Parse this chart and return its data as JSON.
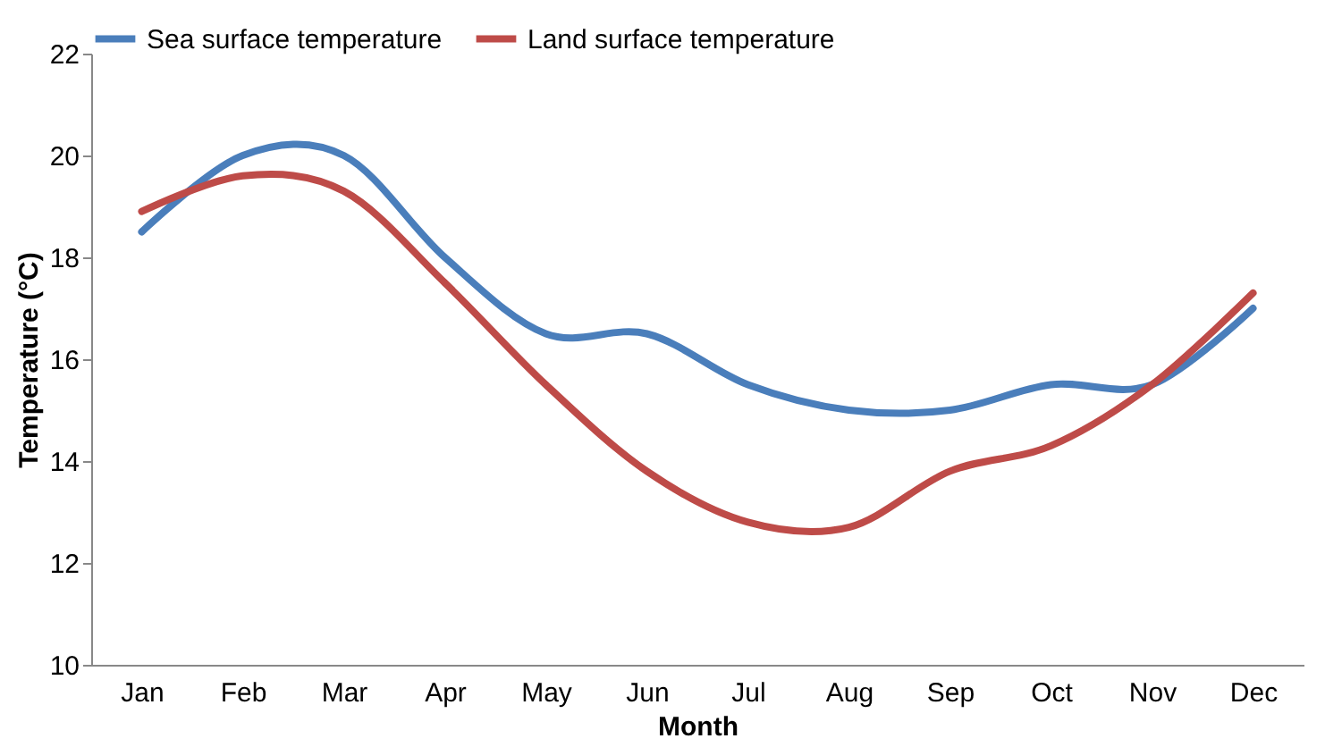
{
  "chart_data": {
    "type": "line",
    "xlabel": "Month",
    "ylabel": "Temperature (°C)",
    "categories": [
      "Jan",
      "Feb",
      "Mar",
      "Apr",
      "May",
      "Jun",
      "Jul",
      "Aug",
      "Sep",
      "Oct",
      "Nov",
      "Dec"
    ],
    "series": [
      {
        "name": "Sea surface temperature",
        "color": "#4a7ebb",
        "values": [
          18.5,
          20.0,
          20.0,
          18.0,
          16.5,
          16.5,
          15.5,
          15.0,
          15.0,
          15.5,
          15.5,
          17.0
        ]
      },
      {
        "name": "Land surface temperature",
        "color": "#be4b48",
        "values": [
          18.9,
          19.6,
          19.3,
          17.5,
          15.5,
          13.8,
          12.8,
          12.7,
          13.8,
          14.3,
          15.5,
          17.3
        ]
      }
    ],
    "ylim": [
      10,
      22
    ],
    "yticks": [
      10,
      12,
      14,
      16,
      18,
      20,
      22
    ],
    "grid": false,
    "legend": "top",
    "marker": "none",
    "line_style": "solid"
  }
}
